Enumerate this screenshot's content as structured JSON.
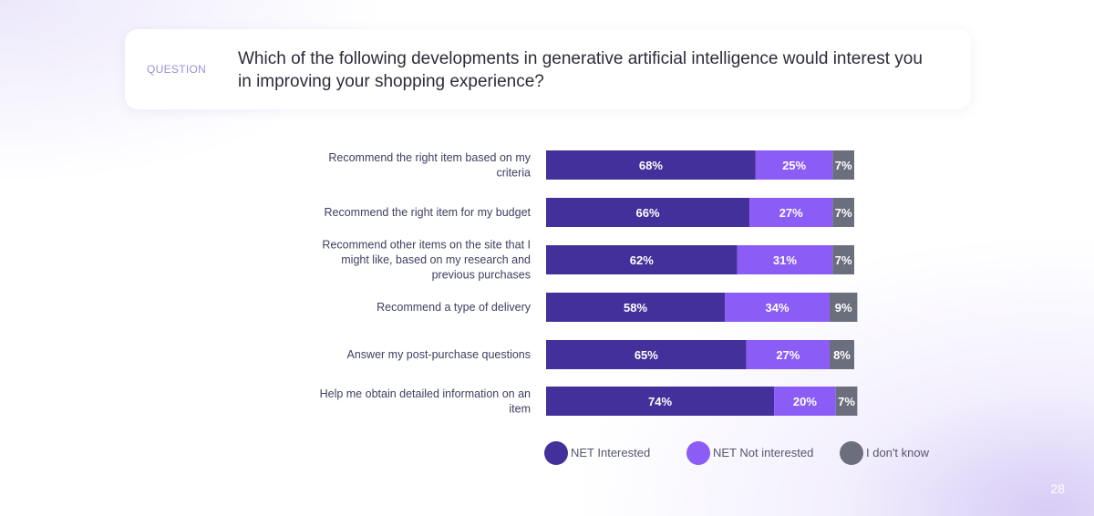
{
  "question": {
    "tag": "QUESTION",
    "text": "Which of the following developments in generative artificial intelligence would interest you in improving your shopping experience?"
  },
  "page_number": "28",
  "colors": {
    "net_interested": "#44309a",
    "net_not_interested": "#8b5cf6",
    "dont_know": "#6b6e7c",
    "category_label": "#3f4060",
    "bar_text": "#ffffff"
  },
  "chart_data": {
    "type": "bar",
    "orientation": "horizontal",
    "stacked": true,
    "title": "",
    "categories": [
      "Recommend the right item based on my criteria",
      "Recommend the right item for my budget",
      "Recommend other items on the site that I might like, based on my research and previous purchases",
      "Recommend a type of delivery",
      "Answer my post-purchase questions",
      "Help me obtain detailed information on an item"
    ],
    "series": [
      {
        "name": "NET Interested",
        "values": [
          68,
          66,
          62,
          58,
          65,
          74
        ],
        "labels": [
          "68%",
          "66%",
          "62%",
          "58%",
          "65%",
          "74%"
        ]
      },
      {
        "name": "NET Not interested",
        "values": [
          25,
          27,
          31,
          34,
          27,
          20
        ],
        "labels": [
          "25%",
          "27%",
          "31%",
          "34%",
          "27%",
          "20%"
        ]
      },
      {
        "name": "I don't know",
        "values": [
          7,
          7,
          7,
          9,
          8,
          7
        ],
        "labels": [
          "7%",
          "7%",
          "7%",
          "9%",
          "8%",
          "7%"
        ]
      }
    ],
    "xlim": [
      0,
      100
    ],
    "grid": false,
    "legend_position": "bottom"
  }
}
